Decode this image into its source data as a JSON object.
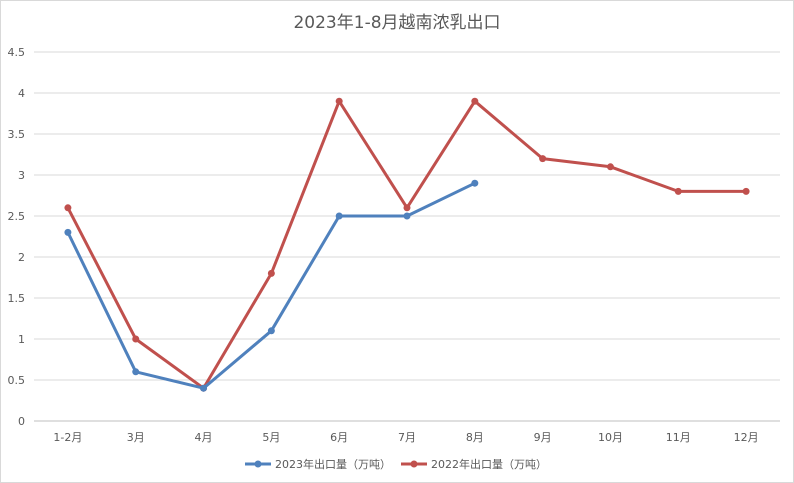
{
  "chart_data": {
    "type": "line",
    "title": "2023年1-8月越南浓乳出口",
    "categories": [
      "1-2月",
      "3月",
      "4月",
      "5月",
      "6月",
      "7月",
      "8月",
      "9月",
      "10月",
      "11月",
      "12月"
    ],
    "y_ticks": [
      "0",
      "0.5",
      "1",
      "1.5",
      "2",
      "2.5",
      "3",
      "3.5",
      "4",
      "4.5"
    ],
    "ylim": [
      0,
      4.5
    ],
    "grid": "horizontal",
    "legend_position": "bottom",
    "series": [
      {
        "name": "2023年出口量（万吨）",
        "color": "#4f81bd",
        "values": [
          2.3,
          0.6,
          0.4,
          1.1,
          2.5,
          2.5,
          2.9,
          null,
          null,
          null,
          null
        ]
      },
      {
        "name": "2022年出口量（万吨）",
        "color": "#c0504d",
        "values": [
          2.6,
          1.0,
          0.4,
          1.8,
          3.9,
          2.6,
          3.9,
          3.2,
          3.1,
          2.8,
          2.8
        ]
      }
    ]
  }
}
